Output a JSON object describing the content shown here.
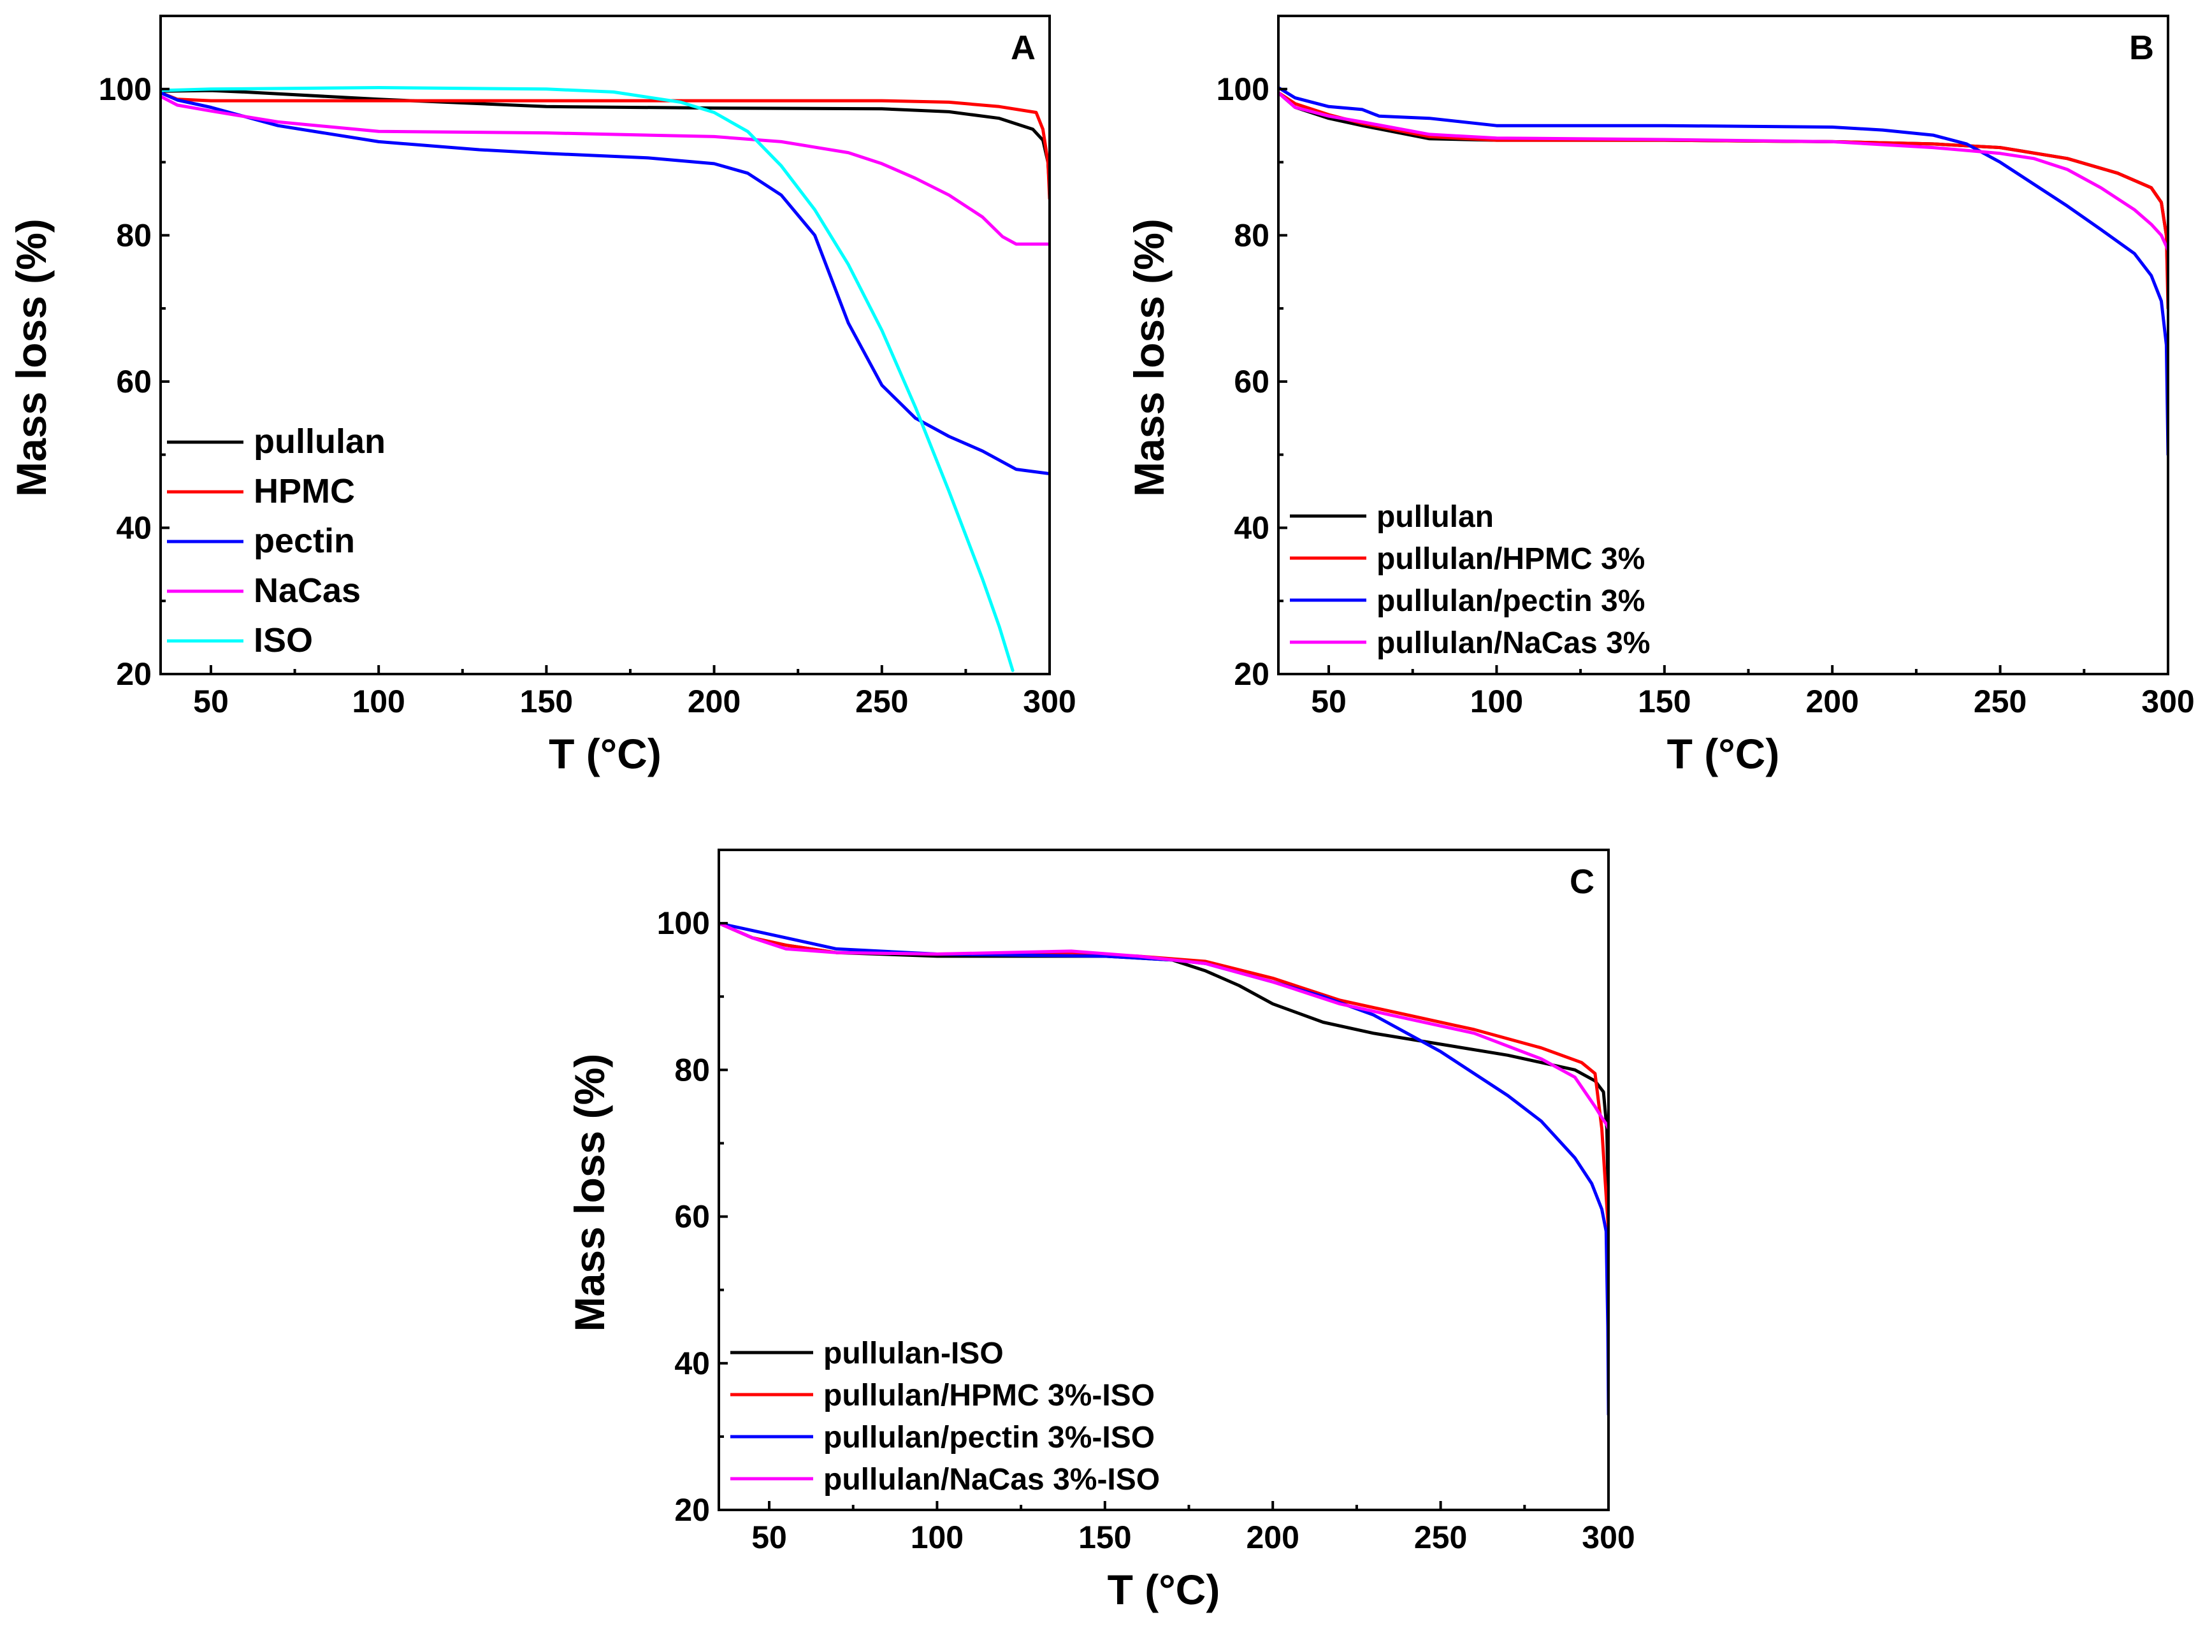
{
  "chart_data": [
    {
      "type": "line",
      "panel_label": "A",
      "xlabel": "T (°C)",
      "ylabel": "Mass loss (%)",
      "xlim": [
        35,
        300
      ],
      "ylim": [
        20,
        110
      ],
      "xticks": [
        "50",
        "100",
        "150",
        "200",
        "250",
        "300"
      ],
      "yticks": [
        "20",
        "40",
        "60",
        "80",
        "100"
      ],
      "legend_position": "lower-left",
      "series": [
        {
          "name": "pullulan",
          "color": "#000000",
          "x": [
            35,
            50,
            60,
            100,
            150,
            200,
            250,
            270,
            285,
            295,
            298,
            299.5,
            300
          ],
          "values": [
            99.7,
            99.8,
            99.6,
            98.6,
            97.6,
            97.4,
            97.3,
            96.9,
            96.0,
            94.5,
            93.0,
            90.0,
            86.0
          ]
        },
        {
          "name": "HPMC",
          "color": "#ff0000",
          "x": [
            35,
            40,
            50,
            100,
            150,
            200,
            250,
            270,
            285,
            296,
            298,
            299.5,
            300
          ],
          "values": [
            99.5,
            98.6,
            98.4,
            98.4,
            98.4,
            98.4,
            98.4,
            98.2,
            97.6,
            96.8,
            94.5,
            90.0,
            85.0
          ]
        },
        {
          "name": "pectin",
          "color": "#0000ff",
          "x": [
            35,
            40,
            50,
            70,
            100,
            130,
            150,
            180,
            200,
            210,
            220,
            230,
            240,
            250,
            260,
            270,
            280,
            290,
            300
          ],
          "values": [
            99.5,
            98.5,
            97.5,
            95.0,
            92.8,
            91.7,
            91.2,
            90.6,
            89.8,
            88.5,
            85.5,
            80.0,
            68.0,
            59.5,
            55.0,
            52.5,
            50.5,
            48.0,
            47.4
          ]
        },
        {
          "name": "NaCas",
          "color": "#ff00ff",
          "x": [
            35,
            40,
            50,
            70,
            100,
            150,
            200,
            220,
            240,
            250,
            260,
            270,
            280,
            286,
            290,
            300
          ],
          "values": [
            99.0,
            97.8,
            97.0,
            95.5,
            94.2,
            94.0,
            93.5,
            92.8,
            91.3,
            89.8,
            87.8,
            85.5,
            82.5,
            79.8,
            78.8,
            78.8
          ]
        },
        {
          "name": "ISO",
          "color": "#00ffff",
          "x": [
            35,
            50,
            100,
            150,
            170,
            190,
            200,
            210,
            220,
            230,
            240,
            250,
            260,
            270,
            280,
            285,
            289
          ],
          "values": [
            99.8,
            100.0,
            100.2,
            100.0,
            99.6,
            98.2,
            96.8,
            94.2,
            89.5,
            83.5,
            76.0,
            67.0,
            56.5,
            45.0,
            33.0,
            26.5,
            20.5
          ]
        }
      ]
    },
    {
      "type": "line",
      "panel_label": "B",
      "xlabel": "T (°C)",
      "ylabel": "Mass loss (%)",
      "xlim": [
        35,
        300
      ],
      "ylim": [
        20,
        110
      ],
      "xticks": [
        "50",
        "100",
        "150",
        "200",
        "250",
        "300"
      ],
      "yticks": [
        "20",
        "40",
        "60",
        "80",
        "100"
      ],
      "legend_position": "lower-left",
      "series": [
        {
          "name": "pullulan",
          "color": "#000000",
          "x": [
            35,
            40,
            50,
            60,
            80,
            100,
            150,
            200,
            230,
            250,
            270,
            285,
            295,
            298,
            299.5,
            300
          ],
          "values": [
            99.5,
            97.5,
            96.0,
            95.0,
            93.2,
            93.0,
            93.0,
            92.8,
            92.5,
            92.0,
            90.5,
            88.5,
            86.5,
            84.5,
            80.0,
            72.0
          ]
        },
        {
          "name": "pullulan/HPMC 3%",
          "color": "#ff0000",
          "x": [
            35,
            40,
            50,
            60,
            80,
            100,
            150,
            200,
            230,
            250,
            270,
            285,
            295,
            298,
            299.5,
            300
          ],
          "values": [
            99.5,
            98.0,
            96.5,
            95.3,
            93.5,
            93.0,
            93.0,
            92.8,
            92.5,
            92.0,
            90.5,
            88.5,
            86.5,
            84.5,
            80.0,
            70.0
          ]
        },
        {
          "name": "pullulan/pectin 3%",
          "color": "#0000ff",
          "x": [
            35,
            40,
            50,
            60,
            65,
            80,
            100,
            150,
            200,
            215,
            230,
            240,
            250,
            260,
            270,
            280,
            290,
            295,
            298,
            299.5,
            300
          ],
          "values": [
            100.2,
            98.8,
            97.6,
            97.2,
            96.3,
            96.0,
            95.0,
            95.0,
            94.8,
            94.4,
            93.7,
            92.5,
            90.0,
            87.0,
            84.0,
            80.8,
            77.5,
            74.5,
            71.0,
            65.0,
            50.0
          ]
        },
        {
          "name": "pullulan/NaCas 3%",
          "color": "#ff00ff",
          "x": [
            35,
            40,
            50,
            60,
            80,
            100,
            150,
            200,
            230,
            250,
            260,
            270,
            280,
            290,
            295,
            298,
            300
          ],
          "values": [
            99.5,
            97.5,
            96.3,
            95.5,
            93.8,
            93.3,
            93.1,
            92.8,
            92.0,
            91.2,
            90.5,
            89.0,
            86.5,
            83.5,
            81.5,
            80.0,
            78.0
          ]
        }
      ]
    },
    {
      "type": "line",
      "panel_label": "C",
      "xlabel": "T (°C)",
      "ylabel": "Mass loss (%)",
      "xlim": [
        35,
        300
      ],
      "ylim": [
        20,
        110
      ],
      "xticks": [
        "50",
        "100",
        "150",
        "200",
        "250",
        "300"
      ],
      "yticks": [
        "20",
        "40",
        "60",
        "80",
        "100"
      ],
      "legend_position": "lower-left",
      "series": [
        {
          "name": "pullulan-ISO",
          "color": "#000000",
          "x": [
            35,
            45,
            55,
            70,
            100,
            150,
            170,
            180,
            190,
            200,
            215,
            230,
            250,
            270,
            290,
            296,
            298.5,
            299.5,
            300
          ],
          "values": [
            100.0,
            98.0,
            97.0,
            96.0,
            95.5,
            95.5,
            95.0,
            93.5,
            91.5,
            89.0,
            86.5,
            85.0,
            83.5,
            82.0,
            80.0,
            78.5,
            77.0,
            72.0,
            60.0
          ]
        },
        {
          "name": "pullulan/HPMC 3%-ISO",
          "color": "#ff0000",
          "x": [
            35,
            45,
            55,
            70,
            100,
            140,
            160,
            180,
            200,
            220,
            240,
            260,
            280,
            292,
            296,
            298,
            299,
            300
          ],
          "values": [
            100.0,
            98.0,
            97.0,
            96.0,
            95.8,
            96.0,
            95.5,
            94.8,
            92.5,
            89.5,
            87.5,
            85.5,
            83.0,
            81.0,
            79.5,
            72.0,
            65.0,
            58.0
          ]
        },
        {
          "name": "pullulan/pectin 3%-ISO",
          "color": "#0000ff",
          "x": [
            35,
            45,
            55,
            70,
            100,
            150,
            170,
            180,
            200,
            215,
            230,
            240,
            250,
            260,
            270,
            280,
            290,
            295,
            298,
            299.3,
            299.8,
            300
          ],
          "values": [
            100.0,
            99.0,
            98.0,
            96.5,
            95.8,
            95.5,
            95.0,
            94.5,
            92.0,
            90.0,
            87.5,
            85.0,
            82.5,
            79.5,
            76.5,
            73.0,
            68.0,
            64.5,
            61.0,
            58.0,
            45.0,
            33.0
          ]
        },
        {
          "name": "pullulan/NaCas 3%-ISO",
          "color": "#ff00ff",
          "x": [
            35,
            45,
            55,
            70,
            100,
            140,
            160,
            180,
            200,
            220,
            240,
            260,
            280,
            290,
            296,
            298,
            299.5,
            300
          ],
          "values": [
            100.0,
            98.0,
            96.5,
            96.0,
            95.8,
            96.2,
            95.5,
            94.5,
            92.0,
            89.0,
            87.0,
            85.0,
            81.5,
            79.0,
            75.0,
            73.5,
            72.5,
            72.0
          ]
        }
      ]
    }
  ]
}
